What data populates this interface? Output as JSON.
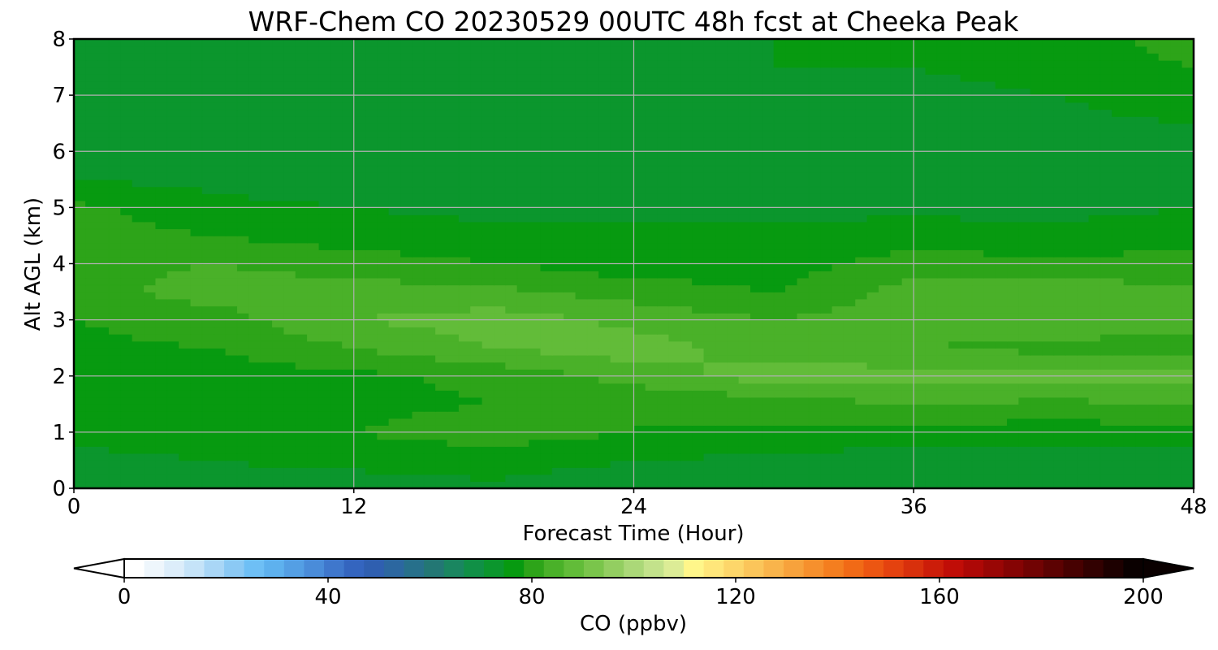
{
  "chart_data": {
    "type": "heatmap",
    "title": "WRF-Chem CO  20230529 00UTC 48h fcst at Cheeka Peak",
    "xlabel": "Forecast Time (Hour)",
    "ylabel": "Alt AGL (km)",
    "xlim": [
      0,
      48
    ],
    "ylim": [
      0,
      8
    ],
    "xticks": [
      0,
      12,
      24,
      36,
      48
    ],
    "yticks": [
      0,
      1,
      2,
      3,
      4,
      5,
      6,
      7,
      8
    ],
    "grid": true,
    "x": [
      0,
      6,
      12,
      18,
      24,
      30,
      36,
      42,
      48
    ],
    "y": [
      0,
      0.5,
      1,
      1.5,
      2,
      2.5,
      3,
      3.5,
      4,
      4.5,
      5,
      5.5,
      6,
      6.5,
      7,
      7.5,
      8
    ],
    "z": [
      [
        72,
        74,
        74,
        75,
        73,
        73,
        72,
        72,
        72
      ],
      [
        75,
        76,
        77,
        78,
        76,
        75,
        74,
        74,
        74
      ],
      [
        77,
        78,
        80,
        82,
        80,
        79,
        78,
        78,
        78
      ],
      [
        77,
        77,
        79,
        80,
        80,
        82,
        84,
        83,
        84
      ],
      [
        78,
        78,
        79,
        81,
        86,
        90,
        90,
        89,
        90
      ],
      [
        79,
        80,
        84,
        88,
        90,
        86,
        84,
        83,
        83
      ],
      [
        80,
        82,
        88,
        90,
        87,
        84,
        86,
        86,
        85
      ],
      [
        82,
        86,
        86,
        85,
        82,
        80,
        86,
        86,
        85
      ],
      [
        83,
        84,
        82,
        80,
        78,
        78,
        82,
        81,
        82
      ],
      [
        82,
        80,
        78,
        77,
        77,
        77,
        78,
        77,
        78
      ],
      [
        81,
        77,
        76,
        75,
        75,
        75,
        75,
        75,
        76
      ],
      [
        76,
        75,
        74,
        74,
        74,
        74,
        74,
        74,
        75
      ],
      [
        73,
        73,
        73,
        72,
        73,
        74,
        74,
        74,
        75
      ],
      [
        72,
        72,
        72,
        72,
        73,
        74,
        74,
        75,
        76
      ],
      [
        72,
        72,
        72,
        73,
        74,
        75,
        75,
        76,
        78
      ],
      [
        72,
        72,
        73,
        74,
        75,
        76,
        76,
        77,
        80
      ],
      [
        72,
        72,
        73,
        75,
        76,
        76,
        77,
        78,
        82
      ]
    ],
    "colorbar": {
      "label": "CO  (ppbv)",
      "min": 0,
      "max": 200,
      "ticks": [
        0,
        40,
        80,
        120,
        160,
        200
      ],
      "extend": "both",
      "colors": [
        "#ffffff",
        "#eef6fc",
        "#dcedfa",
        "#c5e3f8",
        "#a9d6f6",
        "#8bc9f4",
        "#6ebff5",
        "#5eb1ee",
        "#549fe4",
        "#4a8cd9",
        "#3f77cc",
        "#3465bf",
        "#2f5fb0",
        "#2c67a0",
        "#27708b",
        "#237774",
        "#1a8660",
        "#109046",
        "#0b962d",
        "#079a10",
        "#2da419",
        "#4ab129",
        "#62bc39",
        "#7ac54b",
        "#93ce61",
        "#abd878",
        "#c3e28b",
        "#dcec96",
        "#fff68a",
        "#ffe67a",
        "#fdd66a",
        "#fbc55a",
        "#f9b44b",
        "#f7a23c",
        "#f6902d",
        "#f47e1f",
        "#f16a16",
        "#ec5612",
        "#e4420f",
        "#d8300c",
        "#cc1d09",
        "#c00d07",
        "#ad0806",
        "#990605",
        "#850404",
        "#710303",
        "#5c0202",
        "#470101",
        "#320101",
        "#1d0000",
        "#0a0000"
      ]
    }
  }
}
